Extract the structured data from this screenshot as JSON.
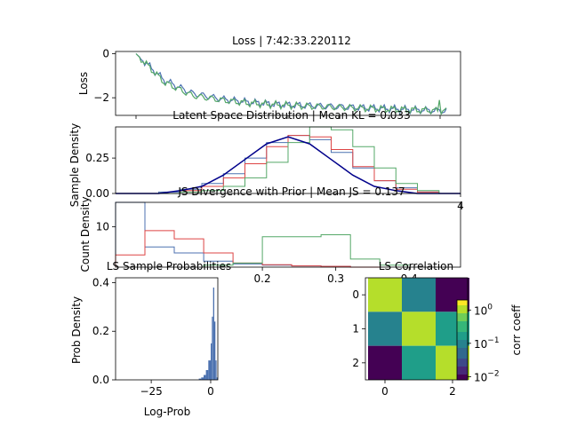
{
  "figure": {
    "title": "Loss | 7:42:33.220112"
  },
  "colors": {
    "series1": "#4c72b0",
    "series2": "#dd4444",
    "series3": "#55a868",
    "prior": "#00008b"
  },
  "colormap": "viridis",
  "chart_data": [
    {
      "id": "loss",
      "type": "line",
      "title": "",
      "xlabel": "",
      "ylabel": "Loss",
      "ylim": [
        -2.8,
        0.1
      ],
      "yticks": [
        0,
        -2
      ],
      "ytick_labels": [
        "0",
        "−2"
      ],
      "series": [
        {
          "values": [
            0.0,
            -1.2,
            -1.8,
            -2.05,
            -2.2,
            -2.3,
            -2.35,
            -2.4,
            -2.45,
            -2.5,
            -2.55,
            -2.6
          ]
        },
        {
          "values": [
            0.0,
            -1.3,
            -1.9,
            -2.1,
            -2.25,
            -2.32,
            -2.38,
            -2.42,
            -2.47,
            -2.52,
            -2.56,
            -2.6
          ]
        }
      ]
    },
    {
      "id": "latent",
      "type": "line",
      "title": "Latent Space Distribution | Mean KL = 0.033",
      "xlabel": "",
      "ylabel": "Sample Density",
      "ylim": [
        0,
        0.47
      ],
      "yticks": [
        0,
        0.25
      ],
      "ytick_labels": [
        "0.00",
        "0.25"
      ],
      "x": [
        -4,
        -3.5,
        -3,
        -2.5,
        -2,
        -1.5,
        -1,
        -0.5,
        0,
        0.5,
        1,
        1.5,
        2,
        2.5,
        3,
        3.5,
        4
      ],
      "series": [
        {
          "values": [
            0.0,
            0.0,
            0.01,
            0.03,
            0.07,
            0.14,
            0.25,
            0.36,
            0.41,
            0.38,
            0.29,
            0.18,
            0.09,
            0.04,
            0.01,
            0.0,
            0.0
          ]
        },
        {
          "values": [
            0.0,
            0.0,
            0.0,
            0.02,
            0.05,
            0.11,
            0.21,
            0.33,
            0.41,
            0.4,
            0.31,
            0.19,
            0.09,
            0.03,
            0.01,
            0.0,
            0.0
          ]
        },
        {
          "values": [
            0.0,
            0.0,
            0.0,
            0.01,
            0.02,
            0.05,
            0.11,
            0.22,
            0.36,
            0.47,
            0.45,
            0.33,
            0.18,
            0.07,
            0.02,
            0.0,
            0.0
          ]
        },
        {
          "values": [
            0.0,
            0.0,
            0.0,
            0.02,
            0.05,
            0.13,
            0.24,
            0.35,
            0.4,
            0.35,
            0.24,
            0.13,
            0.05,
            0.02,
            0.0,
            0.0,
            0.0
          ]
        }
      ],
      "xtick_visible": [
        {
          "value": 4,
          "label": "4"
        }
      ]
    },
    {
      "id": "js",
      "type": "bar",
      "title": "JS Divergence with Prior | Mean JS = 0.137",
      "xlabel": "",
      "ylabel": "Count Density",
      "ylim": [
        0,
        16
      ],
      "yticks": [
        10
      ],
      "ytick_labels": [
        "10"
      ],
      "xlim": [
        0.0,
        0.47
      ],
      "xticks": [
        0.2,
        0.3,
        0.4
      ],
      "xtick_labels": [
        "0.2",
        "0.3",
        "0.4"
      ],
      "series": [
        {
          "edges": [
            0.0,
            0.04,
            0.08,
            0.12,
            0.16,
            0.2,
            0.24,
            0.28,
            0.32,
            0.36
          ],
          "values": [
            16.0,
            5.0,
            3.5,
            1.5,
            0.8,
            0.5,
            0.3,
            0.2,
            0.0
          ]
        },
        {
          "edges": [
            0.0,
            0.04,
            0.08,
            0.12,
            0.16,
            0.2,
            0.24,
            0.28,
            0.32,
            0.36
          ],
          "values": [
            3.0,
            9.0,
            7.0,
            3.5,
            1.0,
            0.6,
            0.3,
            0.2,
            0.0
          ]
        },
        {
          "edges": [
            0.12,
            0.16,
            0.2,
            0.24,
            0.28,
            0.32,
            0.36,
            0.4
          ],
          "values": [
            0.5,
            1.0,
            7.5,
            7.5,
            8.0,
            2.0,
            0.5
          ]
        }
      ]
    },
    {
      "id": "probs",
      "type": "bar",
      "title": "LS Sample Probabilities",
      "xlabel": "Log-Prob",
      "ylabel": "Prob Density",
      "xlim": [
        -40,
        3
      ],
      "ylim": [
        0,
        0.42
      ],
      "xticks": [
        -25,
        0
      ],
      "xtick_labels": [
        "−25",
        "0"
      ],
      "yticks": [
        0.0,
        0.2,
        0.4
      ],
      "ytick_labels": [
        "0.0",
        "0.2",
        "0.4"
      ],
      "series": [
        {
          "edges": [
            -5,
            -4,
            -3,
            -2,
            -1,
            0,
            0.5,
            1,
            1.5,
            2,
            2.5,
            3
          ],
          "values": [
            0.005,
            0.01,
            0.02,
            0.04,
            0.08,
            0.15,
            0.26,
            0.38,
            0.24,
            0.08,
            0.01
          ]
        }
      ]
    },
    {
      "id": "corr",
      "type": "heatmap",
      "title": "LS Correlation",
      "xlabel": "",
      "ylabel": "",
      "xticks": [
        0,
        2
      ],
      "xtick_labels": [
        "0",
        "2"
      ],
      "yticks": [
        0,
        1,
        2
      ],
      "ytick_labels": [
        "0",
        "1",
        "2"
      ],
      "matrix": [
        [
          1.0,
          0.1,
          0.01
        ],
        [
          0.1,
          1.0,
          0.15
        ],
        [
          0.01,
          0.15,
          1.0
        ]
      ],
      "colorbar": {
        "label": "corr coeff",
        "scale": "log",
        "range": [
          0.008,
          2
        ],
        "ticks": [
          "10^0",
          "10^-1",
          "10^-2"
        ]
      }
    }
  ]
}
